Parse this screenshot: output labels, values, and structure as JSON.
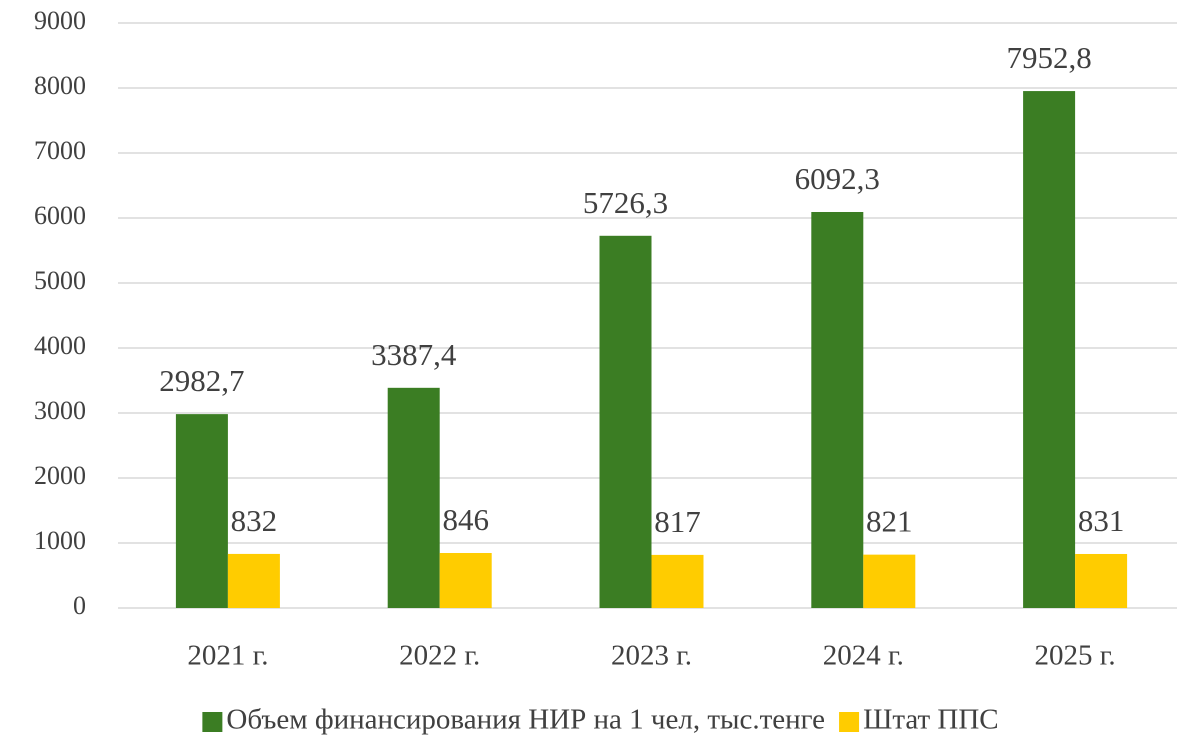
{
  "chart_data": {
    "type": "bar",
    "categories": [
      "2021 г.",
      "2022 г.",
      "2023 г.",
      "2024 г.",
      "2025 г."
    ],
    "series": [
      {
        "name": "Объем финансирования НИР на 1 чел, тыс.тенге",
        "color": "#3b7d23",
        "values": [
          2982.7,
          3387.4,
          5726.3,
          6092.3,
          7952.8
        ],
        "value_labels": [
          "2982,7",
          "3387,4",
          "5726,3",
          "6092,3",
          "7952,8"
        ]
      },
      {
        "name": "Штат ППС",
        "color": "#ffcc00",
        "values": [
          832,
          846,
          817,
          821,
          831
        ]
      }
    ],
    "ylim": [
      0,
      9000
    ],
    "yticks": [
      0,
      1000,
      2000,
      3000,
      4000,
      5000,
      6000,
      7000,
      8000,
      9000
    ],
    "grid": true,
    "legend": "bottom"
  }
}
